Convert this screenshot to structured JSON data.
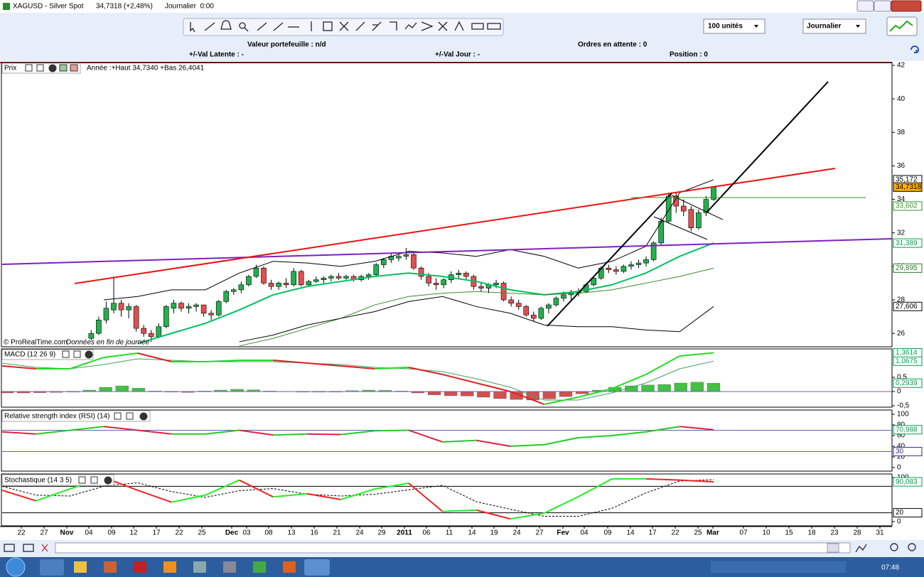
{
  "window": {
    "title": "XAGUSD - Silver Spot",
    "quote": "34,7318 (+2,48%)",
    "period": "Journalier  0:00"
  },
  "toolbar": {
    "quantity": "100 unités",
    "timeframe": "Journalier"
  },
  "account": {
    "portfolio": "Valeur portefeuille : n/d",
    "pending": "Ordres en attente : 0",
    "latent": "+/-Val Latente : -",
    "day": "+/-Val Jour : -",
    "position": "Position : 0"
  },
  "price_panel": {
    "name": "Prix",
    "info": "Année :+Haut 34,7340 +Bas 26,4041",
    "credit": "© ProRealTime.com",
    "note": "Données en fin de journée",
    "ylim": [
      25.2,
      42.17
    ],
    "yticks": [
      26,
      28,
      30,
      32,
      34,
      36,
      38,
      40,
      42
    ],
    "markers": [
      {
        "value": 35.172,
        "label": "35,172",
        "color": "#000000",
        "background": "#ffffff"
      },
      {
        "value": 34.7318,
        "label": "34,7318",
        "color": "#000000",
        "background": "#ffb000"
      },
      {
        "value": 33.602,
        "label": "33,602",
        "color": "#2a9a2a",
        "background": "#ffffff"
      },
      {
        "value": 31.389,
        "label": "31,389",
        "color": "#00a050",
        "background": "#ffffff"
      },
      {
        "value": 29.895,
        "label": "29,895",
        "color": "#2a7a2a",
        "background": "#ffffff"
      },
      {
        "value": 27.606,
        "label": "27,606",
        "color": "#000000",
        "background": "#ffffff"
      }
    ],
    "up_color": "#22b14c",
    "down_color": "#e05050",
    "candles": [
      [
        25.7,
        26.2,
        25.6,
        26.0
      ],
      [
        26.0,
        27.0,
        25.9,
        26.8
      ],
      [
        26.8,
        27.9,
        26.6,
        27.5
      ],
      [
        27.4,
        29.4,
        27.2,
        27.8
      ],
      [
        27.8,
        28.0,
        27.0,
        27.4
      ],
      [
        27.4,
        27.8,
        26.9,
        27.6
      ],
      [
        27.6,
        27.7,
        26.1,
        26.3
      ],
      [
        26.3,
        26.5,
        25.8,
        26.0
      ],
      [
        26.0,
        26.2,
        25.5,
        25.8
      ],
      [
        25.8,
        26.6,
        25.7,
        26.4
      ],
      [
        26.4,
        27.7,
        26.3,
        27.6
      ],
      [
        27.5,
        28.0,
        27.2,
        27.8
      ],
      [
        27.8,
        27.9,
        27.3,
        27.5
      ],
      [
        27.5,
        27.8,
        27.2,
        27.6
      ],
      [
        27.6,
        27.8,
        27.3,
        27.7
      ],
      [
        27.7,
        27.7,
        27.0,
        27.2
      ],
      [
        27.2,
        27.4,
        26.8,
        27.1
      ],
      [
        27.1,
        28.0,
        27.0,
        27.9
      ],
      [
        27.9,
        28.6,
        27.8,
        28.5
      ],
      [
        28.5,
        28.7,
        28.3,
        28.6
      ],
      [
        28.6,
        29.1,
        28.4,
        28.9
      ],
      [
        28.9,
        29.5,
        28.8,
        29.4
      ],
      [
        29.4,
        30.1,
        29.3,
        29.9
      ],
      [
        29.9,
        30.0,
        28.9,
        29.0
      ],
      [
        29.0,
        29.2,
        28.6,
        28.8
      ],
      [
        28.8,
        29.1,
        28.6,
        29.0
      ],
      [
        29.0,
        29.3,
        28.7,
        28.9
      ],
      [
        28.9,
        29.9,
        28.8,
        29.7
      ],
      [
        29.7,
        29.8,
        28.8,
        28.9
      ],
      [
        28.9,
        29.2,
        28.8,
        29.1
      ],
      [
        29.1,
        29.4,
        29.0,
        29.2
      ],
      [
        29.2,
        29.4,
        29.0,
        29.3
      ],
      [
        29.3,
        29.5,
        29.1,
        29.4
      ],
      [
        29.4,
        29.6,
        29.2,
        29.3
      ],
      [
        29.3,
        29.5,
        29.2,
        29.4
      ],
      [
        29.4,
        29.5,
        29.1,
        29.2
      ],
      [
        29.2,
        29.5,
        29.1,
        29.4
      ],
      [
        29.4,
        29.6,
        29.2,
        29.5
      ],
      [
        29.5,
        30.2,
        29.4,
        30.1
      ],
      [
        30.1,
        30.5,
        29.9,
        30.4
      ],
      [
        30.4,
        30.8,
        30.2,
        30.6
      ],
      [
        30.5,
        30.7,
        30.3,
        30.6
      ],
      [
        30.6,
        31.1,
        30.4,
        30.7
      ],
      [
        30.7,
        30.8,
        29.8,
        29.9
      ],
      [
        29.9,
        30.0,
        29.2,
        29.4
      ],
      [
        29.4,
        29.6,
        28.8,
        29.0
      ],
      [
        29.0,
        29.3,
        28.6,
        28.9
      ],
      [
        28.9,
        29.3,
        28.7,
        29.2
      ],
      [
        29.2,
        29.7,
        29.0,
        29.5
      ],
      [
        29.5,
        29.8,
        29.3,
        29.6
      ],
      [
        29.6,
        29.7,
        29.2,
        29.4
      ],
      [
        29.4,
        29.5,
        28.6,
        28.8
      ],
      [
        28.8,
        29.0,
        28.5,
        28.7
      ],
      [
        28.7,
        29.0,
        28.4,
        28.9
      ],
      [
        28.9,
        29.2,
        28.7,
        29.0
      ],
      [
        29.0,
        29.1,
        27.9,
        28.0
      ],
      [
        28.0,
        28.2,
        27.6,
        27.8
      ],
      [
        27.8,
        28.0,
        27.4,
        27.6
      ],
      [
        27.6,
        27.7,
        27.0,
        27.1
      ],
      [
        27.1,
        27.3,
        26.7,
        26.9
      ],
      [
        26.9,
        27.6,
        26.8,
        27.5
      ],
      [
        27.5,
        27.8,
        27.2,
        27.7
      ],
      [
        27.7,
        28.2,
        27.6,
        28.1
      ],
      [
        28.1,
        28.5,
        27.9,
        28.3
      ],
      [
        28.3,
        28.6,
        28.0,
        28.4
      ],
      [
        28.4,
        28.7,
        28.2,
        28.5
      ],
      [
        28.5,
        29.0,
        28.4,
        28.9
      ],
      [
        28.9,
        29.4,
        28.8,
        29.3
      ],
      [
        29.3,
        30.0,
        29.2,
        29.9
      ],
      [
        29.9,
        30.1,
        29.6,
        29.8
      ],
      [
        29.8,
        30.0,
        29.5,
        29.7
      ],
      [
        29.7,
        30.1,
        29.6,
        30.0
      ],
      [
        30.0,
        30.3,
        29.8,
        30.1
      ],
      [
        30.1,
        30.4,
        29.9,
        30.2
      ],
      [
        30.2,
        30.6,
        30.0,
        30.4
      ],
      [
        30.4,
        31.5,
        30.3,
        31.4
      ],
      [
        31.4,
        32.9,
        31.3,
        32.7
      ],
      [
        32.7,
        34.4,
        32.6,
        34.2
      ],
      [
        34.2,
        34.4,
        33.2,
        33.6
      ],
      [
        33.6,
        34.0,
        33.0,
        33.3
      ],
      [
        33.4,
        33.6,
        32.1,
        32.3
      ],
      [
        32.3,
        33.4,
        32.2,
        33.2
      ],
      [
        33.2,
        34.2,
        33.0,
        34.0
      ],
      [
        34.0,
        34.734,
        33.9,
        34.7318
      ]
    ],
    "overlays": [
      {
        "color": "#00c060",
        "width": 2,
        "values": [
          null,
          null,
          null,
          null,
          25.4,
          26.0,
          26.6,
          27.4,
          28.3,
          28.8,
          29.1,
          29.4,
          29.6,
          29.4,
          29.1,
          28.6,
          28.3,
          28.5,
          28.9,
          29.6,
          30.6,
          31.389
        ]
      },
      {
        "color": "#3a8a2a",
        "width": 1,
        "values": [
          null,
          null,
          null,
          null,
          null,
          null,
          null,
          25.25,
          25.7,
          26.3,
          26.9,
          27.7,
          28.2,
          28.4,
          28.5,
          28.4,
          28.3,
          28.4,
          28.6,
          29.0,
          29.4,
          29.895
        ]
      },
      {
        "color": "#000000",
        "width": 1,
        "values": [
          null,
          null,
          null,
          28.0,
          28.2,
          28.6,
          28.6,
          29.6,
          30.3,
          30.2,
          30.0,
          30.3,
          30.9,
          30.8,
          30.6,
          31.0,
          30.6,
          29.9,
          30.3,
          31.2,
          34.4,
          35.172
        ]
      },
      {
        "color": "#000000",
        "width": 1,
        "values": [
          null,
          null,
          null,
          null,
          null,
          null,
          null,
          25.5,
          25.9,
          26.5,
          26.9,
          27.3,
          27.9,
          28.2,
          27.6,
          27.2,
          26.5,
          26.4,
          26.4,
          26.2,
          26.1,
          27.606
        ]
      }
    ]
  },
  "macd_panel": {
    "name": "MACD (12 26 9)",
    "ylim": [
      -0.55,
      1.5
    ],
    "yticks": [
      {
        "value": 0.5,
        "label": "0,5"
      },
      0,
      {
        "value": -0.5,
        "label": "-0,5"
      }
    ],
    "markers": [
      {
        "value": 1.3614,
        "label": "1,3614",
        "color": "#00a050",
        "background": "#ffffff"
      },
      {
        "value": 1.0675,
        "label": "1,0675",
        "color": "#00a050",
        "background": "#ffffff"
      },
      {
        "value": 0.2939,
        "label": "0,2939",
        "color": "#00a050",
        "background": "#ffffff"
      }
    ],
    "macd": {
      "up_color": "#22dd22",
      "down_color": "#dd2222",
      "values": [
        0.9,
        0.8,
        0.8,
        1.2,
        1.35,
        1.05,
        1.05,
        1.1,
        1.1,
        1.0,
        0.9,
        0.8,
        0.85,
        0.6,
        0.3,
        0.0,
        -0.45,
        -0.2,
        0.1,
        0.6,
        1.25,
        1.3614
      ]
    },
    "signal": {
      "color": "#40a060",
      "values": [
        1.0,
        0.85,
        0.8,
        0.95,
        1.15,
        1.1,
        1.05,
        1.05,
        1.05,
        1.0,
        0.95,
        0.85,
        0.8,
        0.7,
        0.45,
        0.15,
        -0.3,
        -0.3,
        -0.05,
        0.3,
        0.8,
        1.0675
      ]
    },
    "histogram": {
      "up_color": "#44c044",
      "down_color": "#d05050",
      "values": [
        -0.05,
        -0.05,
        -0.04,
        -0.03,
        -0.02,
        0.05,
        0.15,
        0.2,
        0.12,
        0.02,
        -0.02,
        -0.03,
        0.02,
        0.05,
        0.08,
        0.06,
        0.02,
        -0.01,
        -0.02,
        -0.02,
        -0.02,
        0.03,
        0.05,
        0.04,
        0.02,
        -0.05,
        -0.12,
        -0.15,
        -0.16,
        -0.2,
        -0.25,
        -0.28,
        -0.3,
        -0.26,
        -0.18,
        -0.08,
        0.05,
        0.15,
        0.2,
        0.23,
        0.25,
        0.3,
        0.33,
        0.2939
      ]
    }
  },
  "rsi_panel": {
    "name": "Relative strength index (RSI) (14)",
    "ylim": [
      -6.7,
      108
    ],
    "yticks": [
      100,
      80,
      60,
      40,
      20,
      0
    ],
    "levels": [
      70,
      30
    ],
    "markers": [
      {
        "value": 70.988,
        "label": "70,988",
        "color": "#00a050",
        "background": "#ffffff"
      },
      {
        "value": 30,
        "label": "30",
        "color": "#3030a0",
        "background": "#ffffff"
      }
    ],
    "line": {
      "up_color": "#22cc22",
      "down_color": "#dd2244",
      "values": [
        67,
        63,
        70,
        77,
        70,
        63,
        63,
        70,
        61,
        63,
        62,
        69,
        70,
        48,
        51,
        40,
        43,
        56,
        60,
        67,
        77,
        70.988
      ]
    }
  },
  "stoch_panel": {
    "name": "Stochastique (14 3 5)",
    "ylim": [
      -9.7,
      108
    ],
    "yticks": [
      100,
      0
    ],
    "levels": [
      80,
      20
    ],
    "markers": [
      {
        "value": 90.083,
        "label": "90,083",
        "color": "#00a050",
        "background": "#ffffff"
      },
      {
        "value": 20,
        "label": "20",
        "color": "#000000",
        "background": "#ffffff"
      }
    ],
    "k": {
      "up_color": "#22ee22",
      "down_color": "#ee2222",
      "values": [
        71,
        47,
        74,
        100,
        71,
        44,
        60,
        94,
        56,
        63,
        50,
        74,
        87,
        23,
        26,
        6,
        19,
        56,
        97,
        97,
        94,
        90.083
      ]
    },
    "d": {
      "color": "#000000",
      "values": [
        80,
        60,
        58,
        80,
        88,
        68,
        55,
        70,
        75,
        62,
        58,
        62,
        72,
        82,
        45,
        28,
        12,
        12,
        30,
        65,
        92,
        95
      ]
    }
  },
  "x_axis": {
    "labels": [
      "22",
      "27",
      "Nov",
      "04",
      "09",
      "12",
      "17",
      "22",
      "25",
      "Dec",
      "03",
      "08",
      "13",
      "16",
      "21",
      "24",
      "29",
      "2011",
      "06",
      "11",
      "14",
      "19",
      "24",
      "27",
      "Fev",
      "04",
      "09",
      "14",
      "17",
      "22",
      "25",
      "Mar",
      "07",
      "10",
      "15",
      "18",
      "23",
      "28",
      "31"
    ]
  },
  "taskbar": {
    "clock": "07:48"
  }
}
